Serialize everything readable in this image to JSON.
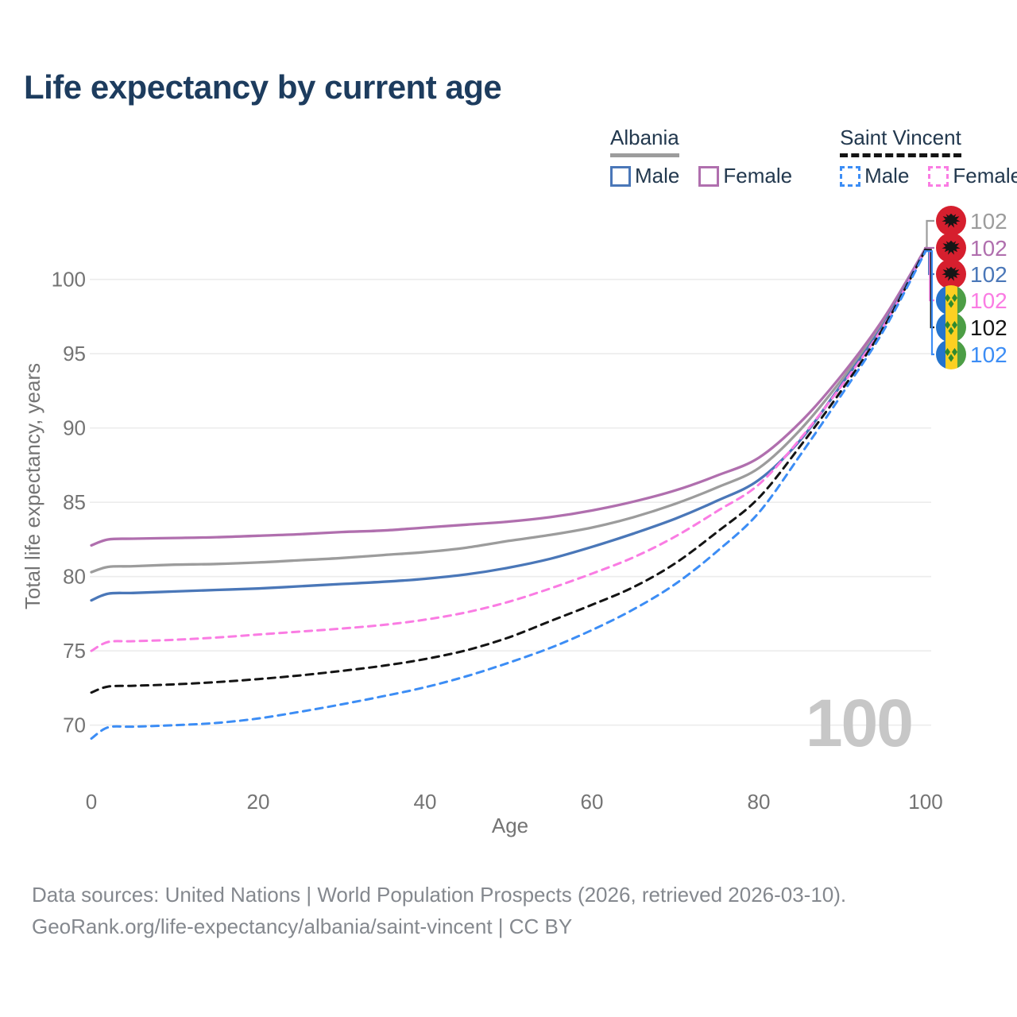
{
  "title": "Life expectancy by current age",
  "legend": {
    "albania": {
      "label": "Albania",
      "male": "Male",
      "female": "Female"
    },
    "saint_vincent": {
      "label": "Saint Vincent",
      "male": "Male",
      "female": "Female"
    }
  },
  "watermark_age": "100",
  "footer": {
    "line1": "Data sources: United Nations | World Population Prospects (2026, retrieved 2026-03-10).",
    "line2": "GeoRank.org/life-expectancy/albania/saint-vincent | CC BY"
  },
  "chart_data": {
    "type": "line",
    "title": "Life expectancy by current age",
    "xlabel": "Age",
    "ylabel": "Total life expectancy, years",
    "xlim": [
      0,
      100
    ],
    "ylim": [
      67.5,
      104.5
    ],
    "xticks": [
      0,
      20,
      40,
      60,
      80,
      100
    ],
    "yticks": [
      70,
      75,
      80,
      85,
      90,
      95,
      100
    ],
    "grid": true,
    "grid_color": "#ececec",
    "tick_color": "#747474",
    "legend_position": "top-right",
    "x": [
      0,
      2,
      5,
      10,
      15,
      20,
      25,
      30,
      35,
      40,
      45,
      50,
      55,
      60,
      65,
      70,
      75,
      80,
      85,
      90,
      95,
      100
    ],
    "series": [
      {
        "id": "albania-all",
        "name": "Albania (both sexes)",
        "color": "#9c9c9c",
        "dashed": false,
        "flag": "albania",
        "end_label": "102",
        "values": [
          80.3,
          80.65,
          80.7,
          80.8,
          80.85,
          80.95,
          81.1,
          81.25,
          81.45,
          81.65,
          81.95,
          82.4,
          82.8,
          83.3,
          84.0,
          84.9,
          86.0,
          87.3,
          89.9,
          93.3,
          97.2,
          102.1
        ]
      },
      {
        "id": "albania-female",
        "name": "Albania Female",
        "color": "#b06fae",
        "dashed": false,
        "flag": "albania",
        "end_label": "102",
        "values": [
          82.1,
          82.5,
          82.55,
          82.6,
          82.65,
          82.75,
          82.85,
          83.0,
          83.1,
          83.3,
          83.5,
          83.7,
          84.0,
          84.45,
          85.05,
          85.8,
          86.8,
          88.0,
          90.4,
          93.6,
          97.4,
          102.1
        ]
      },
      {
        "id": "albania-male",
        "name": "Albania Male",
        "color": "#4a77b8",
        "dashed": false,
        "flag": "albania",
        "end_label": "102",
        "values": [
          78.4,
          78.85,
          78.9,
          79.0,
          79.1,
          79.2,
          79.35,
          79.5,
          79.65,
          79.85,
          80.15,
          80.6,
          81.2,
          82.0,
          82.9,
          83.9,
          85.1,
          86.5,
          89.2,
          93.0,
          97.0,
          102.0
        ]
      },
      {
        "id": "saint-vincent-female",
        "name": "Saint Vincent Female",
        "color": "#fa7ce3",
        "dashed": true,
        "flag": "saint-vincent",
        "end_label": "102",
        "values": [
          75.0,
          75.6,
          75.65,
          75.75,
          75.9,
          76.1,
          76.3,
          76.5,
          76.75,
          77.1,
          77.6,
          78.3,
          79.2,
          80.2,
          81.3,
          82.7,
          84.4,
          86.2,
          89.3,
          92.9,
          96.9,
          102.0
        ]
      },
      {
        "id": "saint-vincent-all",
        "name": "Saint Vincent (both sexes)",
        "color": "#141414",
        "dashed": true,
        "flag": "saint-vincent",
        "end_label": "102",
        "values": [
          72.2,
          72.6,
          72.65,
          72.75,
          72.9,
          73.1,
          73.35,
          73.65,
          74.0,
          74.45,
          75.05,
          75.9,
          77.0,
          78.1,
          79.3,
          80.9,
          83.0,
          85.3,
          88.8,
          92.6,
          96.8,
          102.0
        ]
      },
      {
        "id": "saint-vincent-male",
        "name": "Saint Vincent Male",
        "color": "#3c8df5",
        "dashed": true,
        "flag": "saint-vincent",
        "end_label": "102",
        "values": [
          69.1,
          69.85,
          69.9,
          70.0,
          70.15,
          70.45,
          70.9,
          71.4,
          71.95,
          72.55,
          73.3,
          74.2,
          75.2,
          76.4,
          77.8,
          79.5,
          81.7,
          84.3,
          88.2,
          92.3,
          96.6,
          101.9
        ]
      }
    ]
  }
}
